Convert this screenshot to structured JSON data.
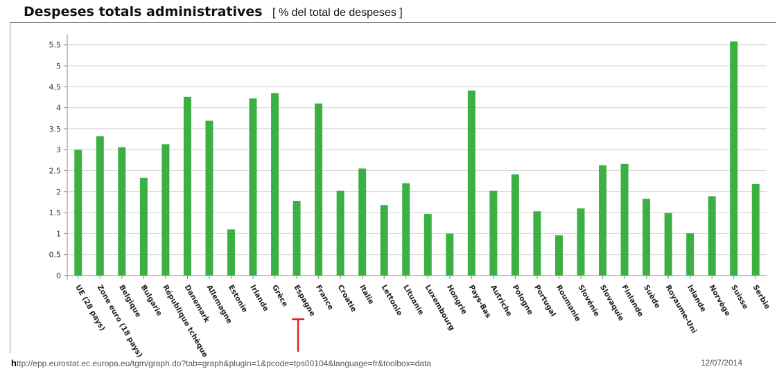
{
  "header": {
    "title": "Despeses totals administratives",
    "subtitle": "[ % del total de despeses ]"
  },
  "footer": {
    "url_first": "h",
    "url_rest": "ttp://epp.eurostat.ec.europa.eu/tgm/graph.do?tab=graph&plugin=1&pcode=tps00104&language=fr&toolbox=data",
    "date": "12/07/2014"
  },
  "colors": {
    "bar": "#3cb043",
    "grid": "#cfcfcf",
    "axis": "#888888",
    "marker": "#e8202a"
  },
  "highlight": {
    "category": "Espagne"
  },
  "chart_data": {
    "type": "bar",
    "title": "Despeses totals administratives",
    "subtitle": "[ % del total de despeses ]",
    "ylim": [
      0,
      5.75
    ],
    "yticks": [
      "0",
      "0.5",
      "1",
      "1.5",
      "2",
      "2.5",
      "3",
      "3.5",
      "4",
      "4.5",
      "5",
      "5.5"
    ],
    "grid": true,
    "categories": [
      "UE (28 pays)",
      "Zone euro (18 pays)",
      "Belgique",
      "Bulgarie",
      "République tchèque",
      "Danemark",
      "Allemagne",
      "Estonie",
      "Irlande",
      "Grèce",
      "Espagne",
      "France",
      "Croatie",
      "Italie",
      "Lettonie",
      "Lituanie",
      "Luxembourg",
      "Hongrie",
      "Pays-Bas",
      "Autriche",
      "Pologne",
      "Portugal",
      "Roumanie",
      "Slovénie",
      "Slovaquie",
      "Finlande",
      "Suède",
      "Royaume-Uni",
      "Islande",
      "Norvège",
      "Suisse",
      "Serbie"
    ],
    "values": [
      3.0,
      3.32,
      3.06,
      2.33,
      3.13,
      4.26,
      3.69,
      1.1,
      4.22,
      4.35,
      1.78,
      4.1,
      2.02,
      2.55,
      1.68,
      2.2,
      1.47,
      1.0,
      4.41,
      2.02,
      2.41,
      1.53,
      0.96,
      1.6,
      2.63,
      2.66,
      1.83,
      1.49,
      1.01,
      1.89,
      5.58,
      2.18
    ]
  }
}
